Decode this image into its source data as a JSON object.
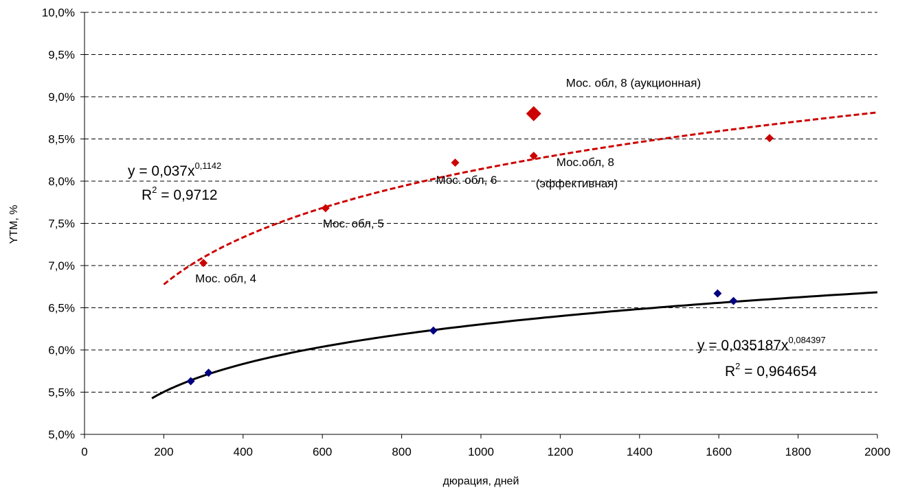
{
  "chart_data": {
    "type": "scatter",
    "title": "",
    "xlabel": "дюрация, дней",
    "ylabel": "YTM, %",
    "xlim": [
      0,
      2000
    ],
    "ylim": [
      5.0,
      10.0
    ],
    "x_ticks": [
      0,
      200,
      400,
      600,
      800,
      1000,
      1200,
      1400,
      1600,
      1800,
      2000
    ],
    "x_tick_labels": [
      "0",
      "200",
      "400",
      "600",
      "800",
      "1000",
      "1200",
      "1400",
      "1600",
      "1800",
      "2000"
    ],
    "y_ticks": [
      5.0,
      5.5,
      6.0,
      6.5,
      7.0,
      7.5,
      8.0,
      8.5,
      9.0,
      9.5,
      10.0
    ],
    "y_tick_labels": [
      "5,0%",
      "5,5%",
      "6,0%",
      "6,5%",
      "7,0%",
      "7,5%",
      "8,0%",
      "8,5%",
      "9,0%",
      "9,5%",
      "10,0%"
    ],
    "grid": "horizontal dashed",
    "legend": "none",
    "series": [
      {
        "color": "#cc0000",
        "marker": "diamond",
        "points": [
          {
            "x": 300,
            "y": 7.03,
            "label": "Мос. обл, 4"
          },
          {
            "x": 608,
            "y": 7.68,
            "label": "Мос. обл, 5"
          },
          {
            "x": 935,
            "y": 8.22,
            "label": "Мос. обл, 6"
          },
          {
            "x": 1133,
            "y": 8.3,
            "label": "Мос.обл, 8",
            "label2": "(эффективная)"
          },
          {
            "x": 1728,
            "y": 8.51,
            "label": ""
          }
        ],
        "highlight": {
          "x": 1133,
          "y": 8.8,
          "label": "Мос. обл, 8 (аукционная)"
        },
        "trend": {
          "a": 0.037,
          "b": 0.1142,
          "x_start": 200,
          "x_end": 2000,
          "style": "dashed"
        },
        "equation": "y = 0,037x",
        "exponent": "0,1142",
        "r2_prefix": "R",
        "r2_sup": "2",
        "r2_value": " = 0,9712"
      },
      {
        "color": "#000080",
        "marker": "diamond",
        "points": [
          {
            "x": 268,
            "y": 5.63
          },
          {
            "x": 313,
            "y": 5.73
          },
          {
            "x": 880,
            "y": 6.23
          },
          {
            "x": 1597,
            "y": 6.67
          },
          {
            "x": 1637,
            "y": 6.58
          }
        ],
        "trend": {
          "a": 0.035187,
          "b": 0.084397,
          "x_start": 170,
          "x_end": 2000,
          "style": "solid"
        },
        "equation": "y = 0,035187x",
        "exponent": "0,084397",
        "r2_prefix": "R",
        "r2_sup": "2",
        "r2_value": " = 0,964654"
      }
    ]
  }
}
